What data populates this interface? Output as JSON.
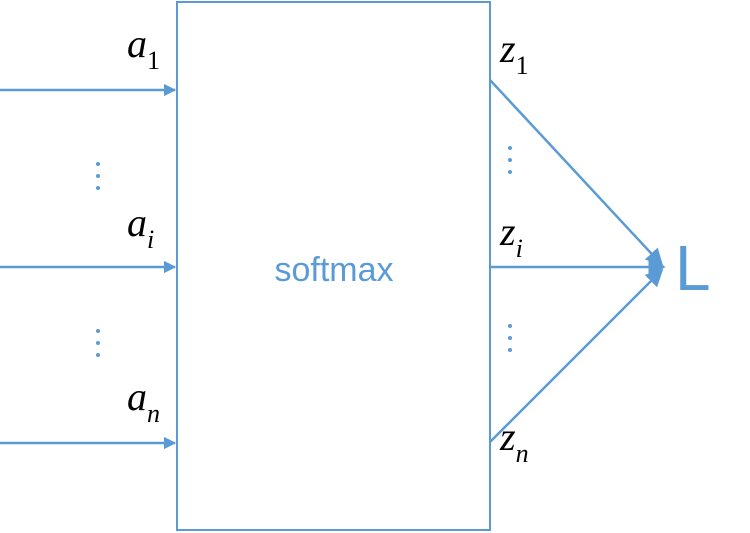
{
  "colors": {
    "accent": "#5b9bd5"
  },
  "box": {
    "label": "softmax"
  },
  "inputs": [
    {
      "symbol": "a",
      "subscript": "1"
    },
    {
      "symbol": "a",
      "subscript": "i"
    },
    {
      "symbol": "a",
      "subscript": "n"
    }
  ],
  "outputs": [
    {
      "symbol": "z",
      "subscript": "1"
    },
    {
      "symbol": "z",
      "subscript": "i"
    },
    {
      "symbol": "z",
      "subscript": "n"
    }
  ],
  "loss": {
    "label": "L"
  }
}
